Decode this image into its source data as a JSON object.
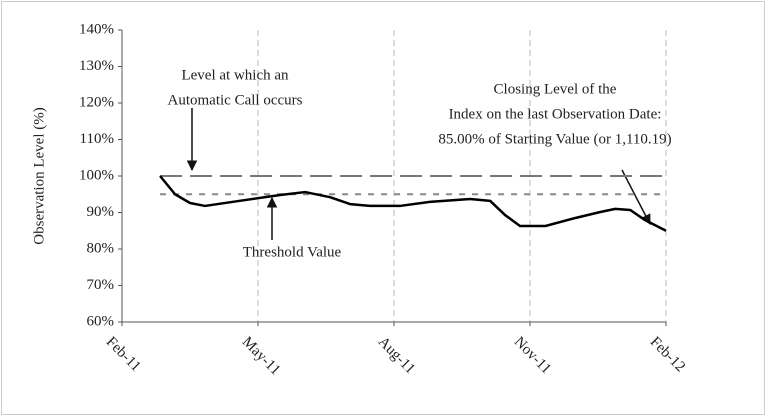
{
  "chart_data": {
    "type": "line",
    "y_label": "Observation Level (%)",
    "xlim": [
      0,
      12
    ],
    "xticks": [
      {
        "value": 0,
        "label": "Feb-11"
      },
      {
        "value": 3,
        "label": "May-11"
      },
      {
        "value": 6,
        "label": "Aug-11"
      },
      {
        "value": 9,
        "label": "Nov-11"
      },
      {
        "value": 12,
        "label": "Feb-12"
      }
    ],
    "ylim": [
      60,
      140
    ],
    "yticks": [
      {
        "value": 60,
        "label": "60%"
      },
      {
        "value": 70,
        "label": "70%"
      },
      {
        "value": 80,
        "label": "80%"
      },
      {
        "value": 90,
        "label": "90%"
      },
      {
        "value": 100,
        "label": "100%"
      },
      {
        "value": 110,
        "label": "110%"
      },
      {
        "value": 120,
        "label": "120%"
      },
      {
        "value": 130,
        "label": "130%"
      },
      {
        "value": 140,
        "label": "140%"
      }
    ],
    "grid": true,
    "x": [
      0.84,
      1.17,
      1.5,
      1.83,
      2.6,
      3.49,
      4.04,
      4.59,
      5.03,
      5.47,
      6.13,
      6.79,
      7.68,
      8.12,
      8.45,
      8.78,
      9.34,
      10,
      10.54,
      10.88,
      11.21,
      11.54,
      12
    ],
    "values": [
      100,
      95,
      92.6,
      91.8,
      93.2,
      94.8,
      95.6,
      94.2,
      92.3,
      91.8,
      91.8,
      92.9,
      93.7,
      93.2,
      89.3,
      86.3,
      86.3,
      88.5,
      90.1,
      91,
      90.7,
      87.9,
      85
    ],
    "color": "#000000",
    "reference_lines": [
      100,
      95
    ],
    "annotations": [
      {
        "lines": [
          "Level at which an",
          "Automatic Call occurs"
        ]
      },
      {
        "lines": [
          "Threshold Value"
        ]
      },
      {
        "lines": [
          "Closing Level of the",
          "Index on the last Observation Date:",
          "85.00% of Starting Value (or 1,110.19)"
        ]
      }
    ]
  }
}
